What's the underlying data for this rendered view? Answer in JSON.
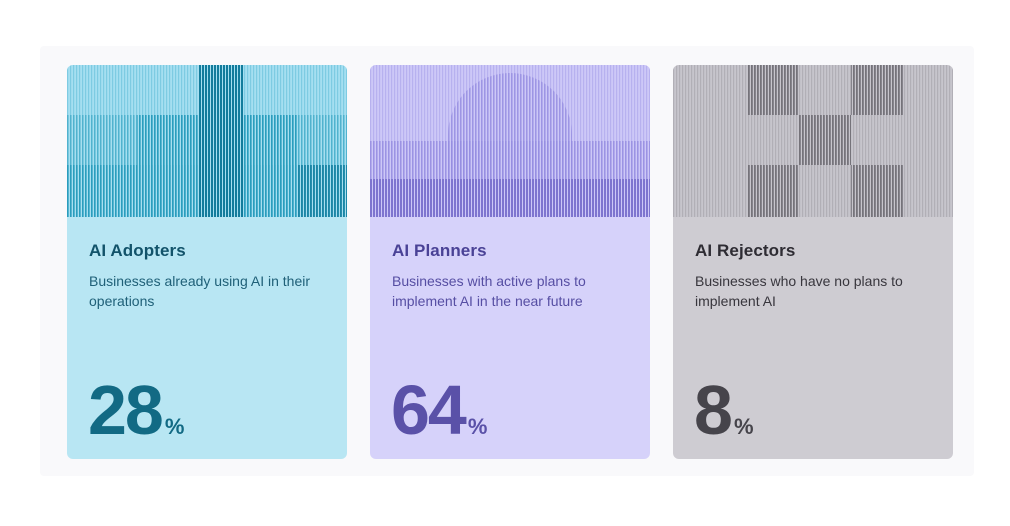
{
  "cards": [
    {
      "title": "AI Adopters",
      "description": "Businesses already using AI in their operations",
      "value": "28",
      "unit": "%",
      "colors": {
        "background": "#b8e6f3",
        "stripe": "#1a8fae",
        "title": "#12536a",
        "stat": "#126a84"
      },
      "pattern": "stepped-peak"
    },
    {
      "title": "AI Planners",
      "description": "Businesses with active plans to implement AI in the near future",
      "value": "64",
      "unit": "%",
      "colors": {
        "background": "#d6d2fa",
        "stripe": "#8a82d6",
        "title": "#4a4296",
        "stat": "#5a51a8"
      },
      "pattern": "dome"
    },
    {
      "title": "AI Rejectors",
      "description": "Businesses who have no plans to implement AI",
      "value": "8",
      "unit": "%",
      "colors": {
        "background": "#ceccd2",
        "stripe": "#7a787f",
        "title": "#2e2c33",
        "stat": "#46444b"
      },
      "pattern": "checkerboard"
    }
  ]
}
